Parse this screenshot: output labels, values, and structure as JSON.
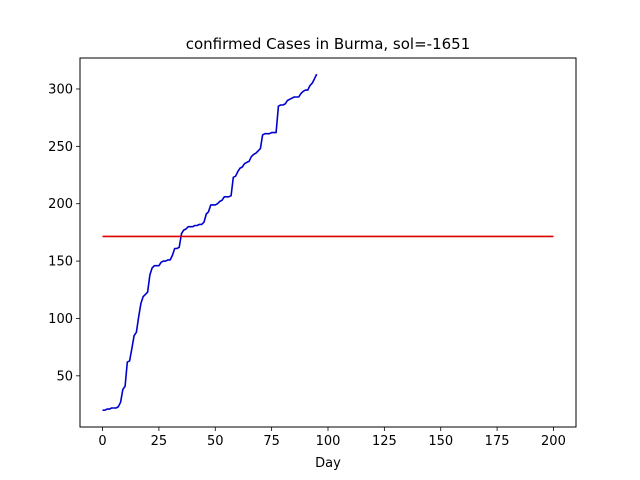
{
  "chart_data": {
    "type": "line",
    "title": "confirmed Cases in Burma, sol=-1651",
    "xlabel": "Day",
    "ylabel": "",
    "xlim": [
      -10,
      210
    ],
    "ylim": [
      5.4,
      327
    ],
    "xticks": [
      0,
      25,
      50,
      75,
      100,
      125,
      150,
      175,
      200
    ],
    "yticks": [
      50,
      100,
      150,
      200,
      250,
      300
    ],
    "grid": false,
    "series": [
      {
        "color": "#0000cd",
        "x": [
          0,
          1,
          2,
          3,
          4,
          5,
          6,
          7,
          8,
          9,
          10,
          11,
          12,
          13,
          14,
          15,
          16,
          17,
          18,
          19,
          20,
          21,
          22,
          23,
          24,
          25,
          26,
          27,
          28,
          29,
          30,
          31,
          32,
          33,
          34,
          35,
          36,
          37,
          38,
          39,
          40,
          41,
          42,
          43,
          44,
          45,
          46,
          47,
          48,
          49,
          50,
          51,
          52,
          53,
          54,
          55,
          56,
          57,
          58,
          59,
          60,
          61,
          62,
          63,
          64,
          65,
          66,
          67,
          68,
          69,
          70,
          71,
          72,
          73,
          74,
          75,
          76,
          77,
          78,
          79,
          80,
          81,
          82,
          83,
          84,
          85,
          86,
          87,
          88,
          89,
          90,
          91,
          92,
          93,
          94,
          95
        ],
        "values": [
          20,
          20,
          21,
          21,
          22,
          22,
          22,
          23,
          27,
          38,
          41,
          62,
          63,
          74,
          85,
          88,
          101,
          113,
          119,
          121,
          123,
          138,
          144,
          146,
          146,
          146,
          149,
          150,
          150,
          151,
          151,
          155,
          161,
          161,
          162,
          174,
          177,
          178,
          180,
          180,
          180,
          181,
          181,
          182,
          182,
          184,
          191,
          193,
          199,
          199,
          199,
          200,
          202,
          203,
          206,
          206,
          206,
          207,
          223,
          224,
          228,
          231,
          232,
          235,
          236,
          237,
          241,
          243,
          244,
          246,
          248,
          260,
          261,
          261,
          261,
          262,
          262,
          262,
          285,
          286,
          286,
          287,
          290,
          291,
          292,
          293,
          293,
          293,
          296,
          298,
          299,
          299,
          303,
          305,
          309,
          313
        ]
      },
      {
        "color": "#dd0000",
        "x": [
          0,
          200
        ],
        "values": [
          171.5,
          171.5
        ]
      }
    ]
  }
}
